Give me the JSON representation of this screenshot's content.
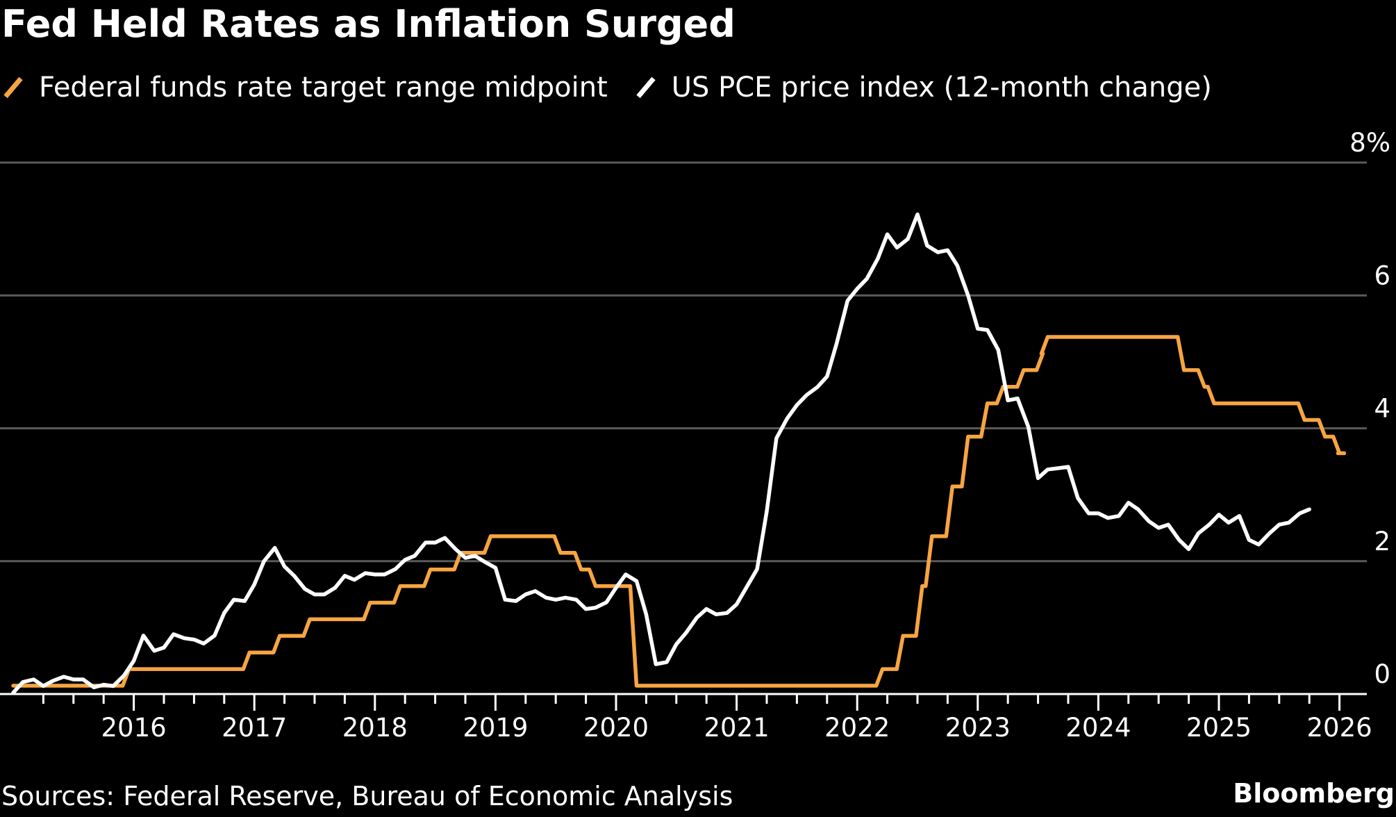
{
  "title": "Fed Held Rates as Inflation Surged",
  "footer": {
    "sources": "Sources: Federal Reserve, Bureau of Economic Analysis",
    "brand": "Bloomberg"
  },
  "colors": {
    "background": "#000000",
    "fed_rate": "#f7a541",
    "pce": "#ffffff",
    "gridline": "#5a5a5a"
  },
  "chart_data": {
    "type": "line",
    "title": "Fed Held Rates as Inflation Surged",
    "xlabel": "",
    "ylabel": "",
    "xlim": [
      2015.0,
      2026.3
    ],
    "ylim": [
      0,
      8
    ],
    "y_ticks": [
      {
        "value": 8,
        "label": "8%"
      },
      {
        "value": 6,
        "label": "6"
      },
      {
        "value": 4,
        "label": "4"
      },
      {
        "value": 2,
        "label": "2"
      },
      {
        "value": 0,
        "label": "0"
      }
    ],
    "x_ticks": [
      {
        "value": 2016,
        "label": "2016"
      },
      {
        "value": 2017,
        "label": "2017"
      },
      {
        "value": 2018,
        "label": "2018"
      },
      {
        "value": 2019,
        "label": "2019"
      },
      {
        "value": 2020,
        "label": "2020"
      },
      {
        "value": 2021,
        "label": "2021"
      },
      {
        "value": 2022,
        "label": "2022"
      },
      {
        "value": 2023,
        "label": "2023"
      },
      {
        "value": 2024,
        "label": "2024"
      },
      {
        "value": 2025,
        "label": "2025"
      },
      {
        "value": 2026,
        "label": "2026"
      }
    ],
    "grid": true,
    "legend_position": "top-left",
    "series": [
      {
        "name": "Federal funds rate target range midpoint",
        "color": "#f7a541",
        "step": true,
        "points": [
          [
            2015.0,
            0.125
          ],
          [
            2015.96,
            0.375
          ],
          [
            2016.96,
            0.625
          ],
          [
            2017.21,
            0.875
          ],
          [
            2017.46,
            1.125
          ],
          [
            2017.96,
            1.375
          ],
          [
            2018.21,
            1.625
          ],
          [
            2018.46,
            1.875
          ],
          [
            2018.71,
            2.125
          ],
          [
            2018.96,
            2.375
          ],
          [
            2019.54,
            2.125
          ],
          [
            2019.71,
            1.875
          ],
          [
            2019.83,
            1.625
          ],
          [
            2020.17,
            0.125
          ],
          [
            2022.21,
            0.375
          ],
          [
            2022.38,
            0.875
          ],
          [
            2022.54,
            1.625
          ],
          [
            2022.62,
            2.375
          ],
          [
            2022.79,
            3.125
          ],
          [
            2022.92,
            3.875
          ],
          [
            2023.08,
            4.375
          ],
          [
            2023.21,
            4.625
          ],
          [
            2023.38,
            4.875
          ],
          [
            2023.54,
            5.125
          ],
          [
            2023.58,
            5.375
          ],
          [
            2024.71,
            4.875
          ],
          [
            2024.88,
            4.625
          ],
          [
            2024.96,
            4.375
          ],
          [
            2025.71,
            4.125
          ],
          [
            2025.88,
            3.875
          ],
          [
            2026.0,
            3.625
          ],
          [
            2026.04,
            3.625
          ]
        ]
      },
      {
        "name": "US PCE price index (12-month change)",
        "color": "#ffffff",
        "step": false,
        "points": [
          [
            2015.0,
            0.02
          ],
          [
            2015.08,
            0.18
          ],
          [
            2015.17,
            0.22
          ],
          [
            2015.25,
            0.12
          ],
          [
            2015.33,
            0.2
          ],
          [
            2015.42,
            0.26
          ],
          [
            2015.5,
            0.22
          ],
          [
            2015.58,
            0.22
          ],
          [
            2015.67,
            0.1
          ],
          [
            2015.75,
            0.14
          ],
          [
            2015.83,
            0.12
          ],
          [
            2015.92,
            0.28
          ],
          [
            2016.0,
            0.5
          ],
          [
            2016.08,
            0.88
          ],
          [
            2016.17,
            0.65
          ],
          [
            2016.25,
            0.7
          ],
          [
            2016.33,
            0.9
          ],
          [
            2016.42,
            0.84
          ],
          [
            2016.5,
            0.82
          ],
          [
            2016.58,
            0.76
          ],
          [
            2016.67,
            0.88
          ],
          [
            2016.75,
            1.22
          ],
          [
            2016.83,
            1.42
          ],
          [
            2016.92,
            1.4
          ],
          [
            2017.0,
            1.65
          ],
          [
            2017.08,
            2.0
          ],
          [
            2017.17,
            2.2
          ],
          [
            2017.25,
            1.92
          ],
          [
            2017.33,
            1.78
          ],
          [
            2017.42,
            1.58
          ],
          [
            2017.5,
            1.5
          ],
          [
            2017.58,
            1.5
          ],
          [
            2017.67,
            1.6
          ],
          [
            2017.75,
            1.78
          ],
          [
            2017.83,
            1.72
          ],
          [
            2017.92,
            1.82
          ],
          [
            2018.0,
            1.8
          ],
          [
            2018.08,
            1.8
          ],
          [
            2018.17,
            1.88
          ],
          [
            2018.25,
            2.02
          ],
          [
            2018.33,
            2.08
          ],
          [
            2018.42,
            2.28
          ],
          [
            2018.5,
            2.28
          ],
          [
            2018.58,
            2.35
          ],
          [
            2018.67,
            2.18
          ],
          [
            2018.75,
            2.05
          ],
          [
            2018.83,
            2.08
          ],
          [
            2018.92,
            1.98
          ],
          [
            2019.0,
            1.9
          ],
          [
            2019.08,
            1.42
          ],
          [
            2019.17,
            1.4
          ],
          [
            2019.25,
            1.5
          ],
          [
            2019.33,
            1.55
          ],
          [
            2019.42,
            1.45
          ],
          [
            2019.5,
            1.42
          ],
          [
            2019.58,
            1.45
          ],
          [
            2019.67,
            1.42
          ],
          [
            2019.75,
            1.28
          ],
          [
            2019.83,
            1.3
          ],
          [
            2019.92,
            1.38
          ],
          [
            2020.0,
            1.6
          ],
          [
            2020.08,
            1.8
          ],
          [
            2020.17,
            1.7
          ],
          [
            2020.25,
            1.2
          ],
          [
            2020.33,
            0.45
          ],
          [
            2020.42,
            0.48
          ],
          [
            2020.5,
            0.75
          ],
          [
            2020.58,
            0.92
          ],
          [
            2020.67,
            1.15
          ],
          [
            2020.75,
            1.28
          ],
          [
            2020.83,
            1.2
          ],
          [
            2020.92,
            1.22
          ],
          [
            2021.0,
            1.35
          ],
          [
            2021.08,
            1.6
          ],
          [
            2021.17,
            1.88
          ],
          [
            2021.25,
            2.75
          ],
          [
            2021.33,
            3.85
          ],
          [
            2021.42,
            4.15
          ],
          [
            2021.5,
            4.35
          ],
          [
            2021.58,
            4.5
          ],
          [
            2021.67,
            4.62
          ],
          [
            2021.75,
            4.78
          ],
          [
            2021.83,
            5.28
          ],
          [
            2021.92,
            5.92
          ],
          [
            2022.0,
            6.1
          ],
          [
            2022.08,
            6.25
          ],
          [
            2022.17,
            6.55
          ],
          [
            2022.25,
            6.92
          ],
          [
            2022.33,
            6.72
          ],
          [
            2022.42,
            6.85
          ],
          [
            2022.5,
            7.22
          ],
          [
            2022.58,
            6.75
          ],
          [
            2022.67,
            6.65
          ],
          [
            2022.75,
            6.68
          ],
          [
            2022.83,
            6.45
          ],
          [
            2022.92,
            6.0
          ],
          [
            2023.0,
            5.5
          ],
          [
            2023.08,
            5.48
          ],
          [
            2023.17,
            5.18
          ],
          [
            2023.25,
            4.42
          ],
          [
            2023.33,
            4.45
          ],
          [
            2023.42,
            4.02
          ],
          [
            2023.5,
            3.25
          ],
          [
            2023.58,
            3.38
          ],
          [
            2023.67,
            3.4
          ],
          [
            2023.75,
            3.42
          ],
          [
            2023.83,
            2.95
          ],
          [
            2023.92,
            2.72
          ],
          [
            2024.0,
            2.72
          ],
          [
            2024.08,
            2.65
          ],
          [
            2024.17,
            2.68
          ],
          [
            2024.25,
            2.88
          ],
          [
            2024.33,
            2.78
          ],
          [
            2024.42,
            2.6
          ],
          [
            2024.5,
            2.5
          ],
          [
            2024.58,
            2.55
          ],
          [
            2024.67,
            2.32
          ],
          [
            2024.75,
            2.18
          ],
          [
            2024.83,
            2.42
          ],
          [
            2024.92,
            2.55
          ],
          [
            2025.0,
            2.7
          ],
          [
            2025.08,
            2.58
          ],
          [
            2025.17,
            2.68
          ],
          [
            2025.25,
            2.32
          ],
          [
            2025.33,
            2.25
          ],
          [
            2025.42,
            2.42
          ],
          [
            2025.5,
            2.55
          ],
          [
            2025.58,
            2.58
          ],
          [
            2025.67,
            2.72
          ],
          [
            2025.75,
            2.78
          ]
        ]
      }
    ]
  }
}
